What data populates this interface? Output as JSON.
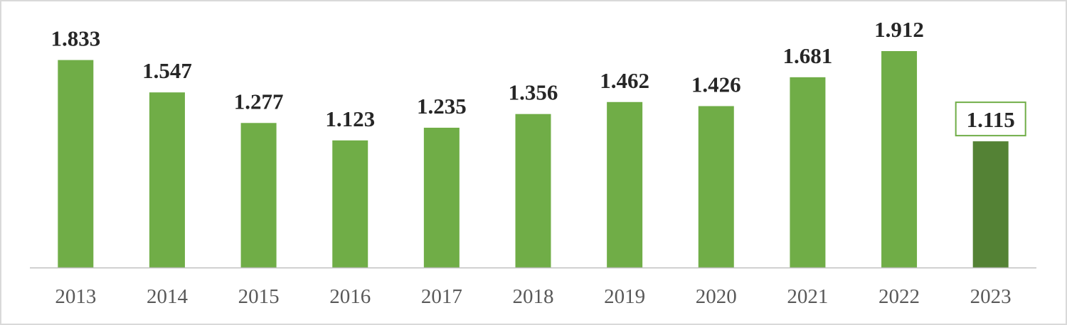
{
  "chart_data": {
    "type": "bar",
    "categories": [
      "2013",
      "2014",
      "2015",
      "2016",
      "2017",
      "2018",
      "2019",
      "2020",
      "2021",
      "2022",
      "2023"
    ],
    "values": [
      1.833,
      1.547,
      1.277,
      1.123,
      1.235,
      1.356,
      1.462,
      1.426,
      1.681,
      1.912,
      1.115
    ],
    "data_labels": [
      "1.833",
      "1.547",
      "1.277",
      "1.123",
      "1.235",
      "1.356",
      "1.462",
      "1.426",
      "1.681",
      "1.912",
      "1.115"
    ],
    "highlighted_category": "2023",
    "title": "",
    "xlabel": "",
    "ylabel": "",
    "ylim": [
      0,
      2.1
    ],
    "grid": false,
    "legend": "none"
  },
  "colors": {
    "bar": "#70ad47",
    "bar_highlight": "#548235",
    "label_box_border": "#70ad47",
    "axis": "#bfbfbf",
    "value_text": "#262626",
    "tick_text": "#595959"
  }
}
